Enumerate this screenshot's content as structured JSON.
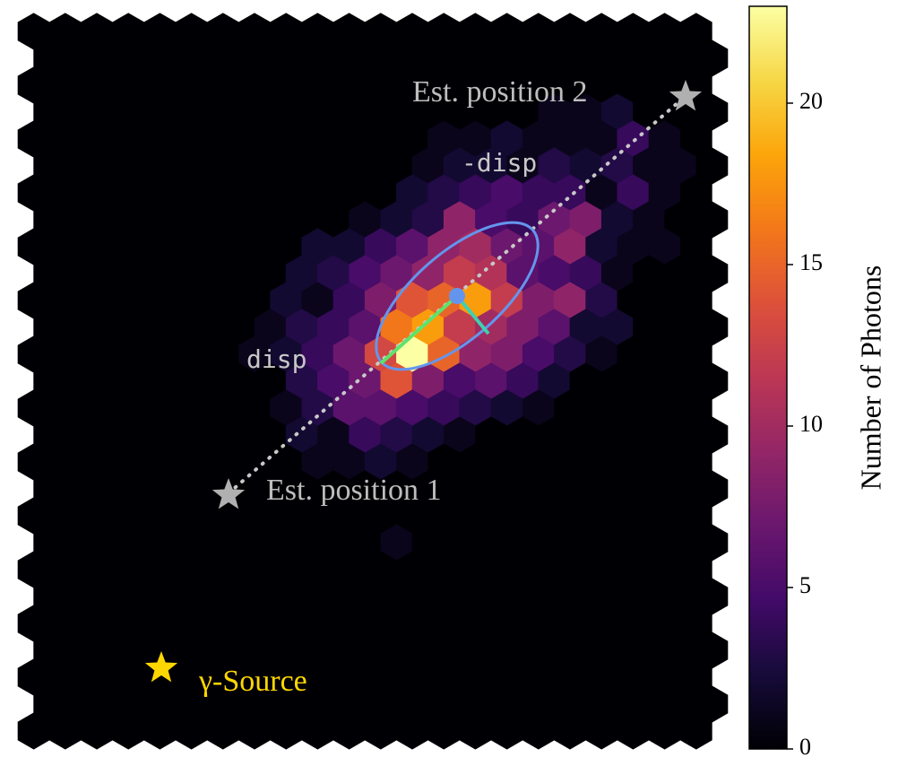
{
  "chart_data": {
    "type": "hexbin",
    "counts": [
      [
        0,
        0,
        0,
        0,
        0,
        0,
        0,
        0,
        0,
        0,
        0,
        0,
        0,
        0,
        0,
        0,
        0,
        0,
        0,
        0,
        0,
        0
      ],
      [
        0,
        0,
        0,
        0,
        0,
        0,
        0,
        0,
        0,
        0,
        0,
        0,
        0,
        0,
        0,
        0,
        0,
        0,
        0,
        0,
        0,
        0
      ],
      [
        0,
        0,
        0,
        0,
        0,
        0,
        0,
        0,
        0,
        0,
        0,
        0,
        0,
        0,
        0,
        0,
        0,
        0,
        0,
        0,
        0,
        0
      ],
      [
        0,
        0,
        0,
        0,
        0,
        0,
        0,
        0,
        0,
        0,
        0,
        0,
        0,
        0,
        0,
        0,
        1,
        1,
        2,
        0,
        0,
        0
      ],
      [
        0,
        0,
        0,
        0,
        0,
        0,
        0,
        0,
        0,
        0,
        0,
        0,
        0,
        1,
        1,
        2,
        1,
        1,
        1,
        4,
        1,
        0
      ],
      [
        0,
        0,
        0,
        0,
        0,
        0,
        0,
        0,
        0,
        0,
        0,
        0,
        1,
        2,
        2,
        1,
        3,
        2,
        3,
        1,
        1,
        0
      ],
      [
        0,
        0,
        0,
        0,
        0,
        0,
        0,
        0,
        0,
        0,
        0,
        0,
        2,
        3,
        4,
        5,
        4,
        4,
        1,
        4,
        1,
        0
      ],
      [
        0,
        0,
        0,
        0,
        0,
        0,
        0,
        0,
        0,
        0,
        1,
        2,
        3,
        9,
        5,
        4,
        7,
        8,
        2,
        1,
        0,
        0
      ],
      [
        0,
        0,
        0,
        0,
        0,
        0,
        0,
        0,
        0,
        2,
        2,
        4,
        6,
        9,
        10,
        7,
        6,
        9,
        2,
        1,
        1,
        0
      ],
      [
        0,
        0,
        0,
        0,
        0,
        0,
        0,
        0,
        2,
        3,
        5,
        7,
        9,
        12,
        11,
        6,
        5,
        4,
        1,
        0,
        0,
        0
      ],
      [
        0,
        0,
        0,
        0,
        0,
        0,
        0,
        0,
        2,
        1,
        4,
        8,
        14,
        15,
        18,
        12,
        8,
        9,
        3,
        0,
        0,
        0
      ],
      [
        0,
        0,
        0,
        0,
        0,
        0,
        0,
        1,
        3,
        4,
        6,
        16,
        18,
        12,
        10,
        8,
        6,
        2,
        2,
        0,
        0,
        0
      ],
      [
        0,
        0,
        0,
        0,
        0,
        0,
        0,
        1,
        2,
        4,
        7,
        13,
        23,
        15,
        9,
        8,
        5,
        3,
        1,
        0,
        0,
        0
      ],
      [
        0,
        0,
        0,
        0,
        0,
        0,
        0,
        0,
        3,
        5,
        7,
        14,
        8,
        5,
        6,
        4,
        2,
        0,
        0,
        0,
        0,
        0
      ],
      [
        0,
        0,
        0,
        0,
        0,
        0,
        0,
        0,
        1,
        3,
        6,
        6,
        5,
        4,
        3,
        2,
        1,
        0,
        0,
        0,
        0,
        0
      ],
      [
        0,
        0,
        0,
        0,
        0,
        0,
        0,
        0,
        2,
        1,
        4,
        3,
        2,
        1,
        0,
        0,
        0,
        0,
        0,
        0,
        0,
        0
      ],
      [
        0,
        0,
        0,
        0,
        0,
        0,
        0,
        0,
        0,
        1,
        1,
        2,
        1,
        0,
        0,
        0,
        0,
        0,
        0,
        0,
        0,
        0
      ],
      [
        0,
        0,
        0,
        0,
        0,
        0,
        0,
        0,
        0,
        0,
        0,
        0,
        0,
        0,
        0,
        0,
        0,
        0,
        0,
        0,
        0,
        0
      ],
      [
        0,
        0,
        0,
        0,
        0,
        0,
        0,
        0,
        0,
        0,
        0,
        0,
        0,
        0,
        0,
        0,
        0,
        0,
        0,
        0,
        0,
        0
      ],
      [
        0,
        0,
        0,
        0,
        0,
        0,
        0,
        0,
        0,
        0,
        0,
        1,
        0,
        0,
        0,
        0,
        0,
        0,
        0,
        0,
        0,
        0
      ],
      [
        0,
        0,
        0,
        0,
        0,
        0,
        0,
        0,
        0,
        0,
        0,
        0,
        0,
        0,
        0,
        0,
        0,
        0,
        0,
        0,
        0,
        0
      ],
      [
        0,
        0,
        0,
        0,
        0,
        0,
        0,
        0,
        0,
        0,
        0,
        0,
        0,
        0,
        0,
        0,
        0,
        0,
        0,
        0,
        0,
        0
      ],
      [
        0,
        0,
        0,
        0,
        0,
        0,
        0,
        0,
        0,
        0,
        0,
        0,
        0,
        0,
        0,
        0,
        0,
        0,
        0,
        0,
        0,
        0
      ],
      [
        0,
        0,
        0,
        0,
        0,
        0,
        0,
        0,
        0,
        0,
        0,
        0,
        0,
        0,
        0,
        0,
        0,
        0,
        0,
        0,
        0,
        0
      ],
      [
        0,
        0,
        0,
        0,
        0,
        0,
        0,
        0,
        0,
        0,
        0,
        0,
        0,
        0,
        0,
        0,
        0,
        0,
        0,
        0,
        0,
        0
      ],
      [
        0,
        0,
        0,
        0,
        0,
        0,
        0,
        0,
        0,
        0,
        0,
        0,
        0,
        0,
        0,
        0,
        0,
        0,
        0,
        0,
        0,
        0
      ],
      [
        0,
        0,
        0,
        0,
        0,
        0,
        0,
        0,
        0,
        0,
        0,
        0,
        0,
        0,
        0,
        0,
        0,
        0,
        0,
        0,
        0,
        0
      ]
    ],
    "colormap": [
      "#000004",
      "#160b39",
      "#420a68",
      "#6a176e",
      "#932667",
      "#bc3754",
      "#dd513a",
      "#f37819",
      "#fca50a",
      "#f6d746",
      "#fcffa4"
    ],
    "zlim": [
      0,
      23
    ],
    "zticks": [
      0,
      5,
      10,
      15,
      20
    ],
    "colorbar_label": "Number of Photons",
    "annotations": {
      "est_position_1": "Est. position 1",
      "est_position_2": "Est. position 2",
      "minus_disp": "-disp",
      "disp": "disp",
      "source": "γ-Source"
    }
  }
}
